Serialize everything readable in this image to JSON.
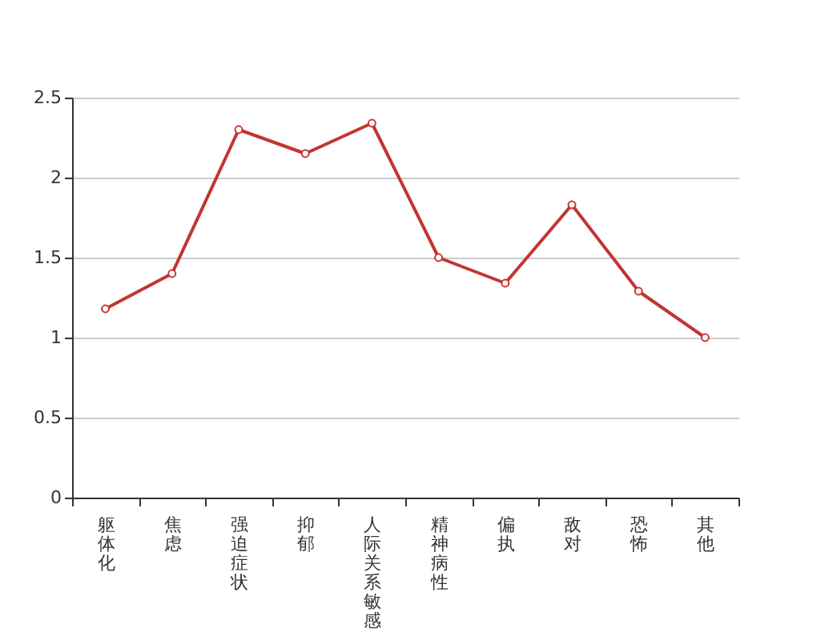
{
  "chart_data": {
    "type": "line",
    "categories": [
      "躯体化",
      "焦虑",
      "强迫症状",
      "抑郁",
      "人际关系敏感",
      "精神病性",
      "偏执",
      "敌对",
      "恐怖",
      "其他"
    ],
    "series": [
      {
        "color": "#c23531",
        "values": [
          1.18,
          1.4,
          2.3,
          2.15,
          2.34,
          1.5,
          1.34,
          1.83,
          1.29,
          1.0
        ]
      }
    ],
    "ylim": [
      0,
      2.5
    ],
    "yticks": [
      0,
      0.5,
      1,
      1.5,
      2,
      2.5
    ],
    "grid": "y",
    "marker": "circle",
    "line_style": "solid"
  }
}
